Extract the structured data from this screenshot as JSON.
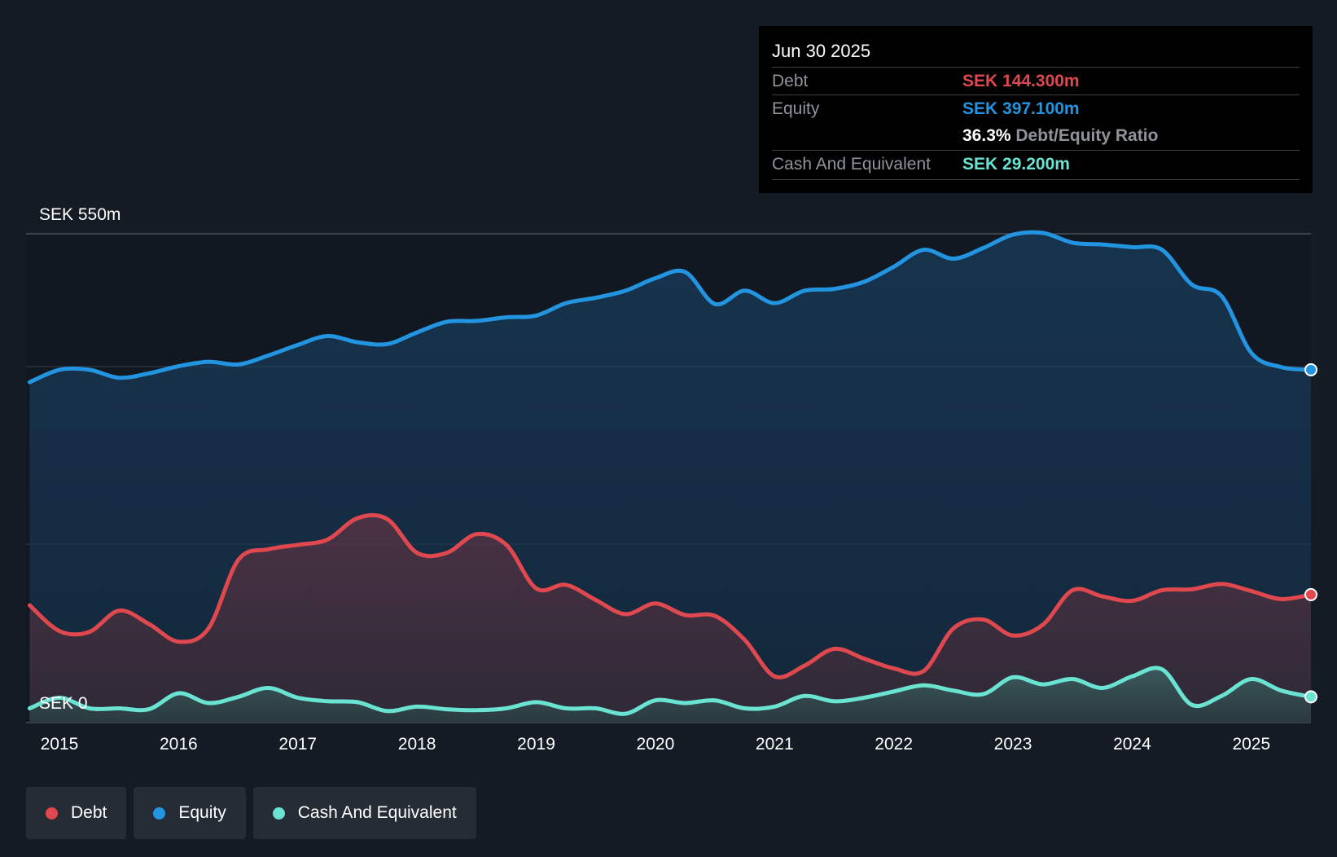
{
  "colors": {
    "debt": "#e0484f",
    "equity": "#2394e0",
    "cash": "#6ae3d3",
    "background": "#151b24",
    "plot_background": "#121821"
  },
  "tooltip": {
    "date": "Jun 30 2025",
    "debt_label": "Debt",
    "debt_value": "SEK 144.300m",
    "equity_label": "Equity",
    "equity_value": "SEK 397.100m",
    "ratio_value": "36.3%",
    "ratio_label": "Debt/Equity Ratio",
    "cash_label": "Cash And Equivalent",
    "cash_value": "SEK 29.200m"
  },
  "legend": {
    "debt": "Debt",
    "equity": "Equity",
    "cash": "Cash And Equivalent"
  },
  "chart_data": {
    "type": "area",
    "title": "",
    "xlabel": "",
    "ylabel": "",
    "y_top_label": "SEK 550m",
    "y_bottom_label": "SEK 0",
    "ylim": [
      0,
      550
    ],
    "xlim": [
      2014.72,
      2025.5
    ],
    "x_ticks": [
      "2015",
      "2016",
      "2017",
      "2018",
      "2019",
      "2020",
      "2021",
      "2022",
      "2023",
      "2024",
      "2025"
    ],
    "x": [
      2014.75,
      2015.0,
      2015.25,
      2015.5,
      2015.75,
      2016.0,
      2016.25,
      2016.5,
      2016.75,
      2017.0,
      2017.25,
      2017.5,
      2017.75,
      2018.0,
      2018.25,
      2018.5,
      2018.75,
      2019.0,
      2019.25,
      2019.5,
      2019.75,
      2020.0,
      2020.25,
      2020.5,
      2020.75,
      2021.0,
      2021.25,
      2021.5,
      2021.75,
      2022.0,
      2022.25,
      2022.5,
      2022.75,
      2023.0,
      2023.25,
      2023.5,
      2023.75,
      2024.0,
      2024.25,
      2024.5,
      2024.75,
      2025.0,
      2025.25,
      2025.5
    ],
    "series": [
      {
        "name": "Equity",
        "values": [
          383,
          397,
          397,
          388,
          393,
          401,
          406,
          403,
          413,
          425,
          435,
          428,
          426,
          439,
          451,
          452,
          456,
          458,
          472,
          478,
          486,
          500,
          507,
          471,
          486,
          472,
          486,
          488,
          496,
          513,
          532,
          522,
          534,
          549,
          551,
          540,
          538,
          535,
          532,
          493,
          480,
          416,
          400,
          397
        ]
      },
      {
        "name": "Debt",
        "values": [
          132,
          103,
          102,
          126,
          111,
          91,
          106,
          183,
          195,
          200,
          206,
          230,
          229,
          191,
          191,
          212,
          200,
          151,
          155,
          138,
          122,
          134,
          121,
          120,
          93,
          52,
          64,
          83,
          72,
          61,
          58,
          106,
          116,
          98,
          110,
          149,
          142,
          137,
          149,
          150,
          156,
          148,
          139,
          144
        ]
      },
      {
        "name": "Cash And Equivalent",
        "values": [
          16,
          28,
          16,
          16,
          15,
          33,
          22,
          29,
          39,
          28,
          24,
          23,
          13,
          18,
          15,
          14,
          16,
          23,
          16,
          16,
          10,
          25,
          22,
          25,
          16,
          18,
          30,
          24,
          28,
          35,
          42,
          36,
          32,
          51,
          43,
          49,
          39,
          52,
          60,
          20,
          30,
          49,
          36,
          29
        ]
      }
    ]
  }
}
